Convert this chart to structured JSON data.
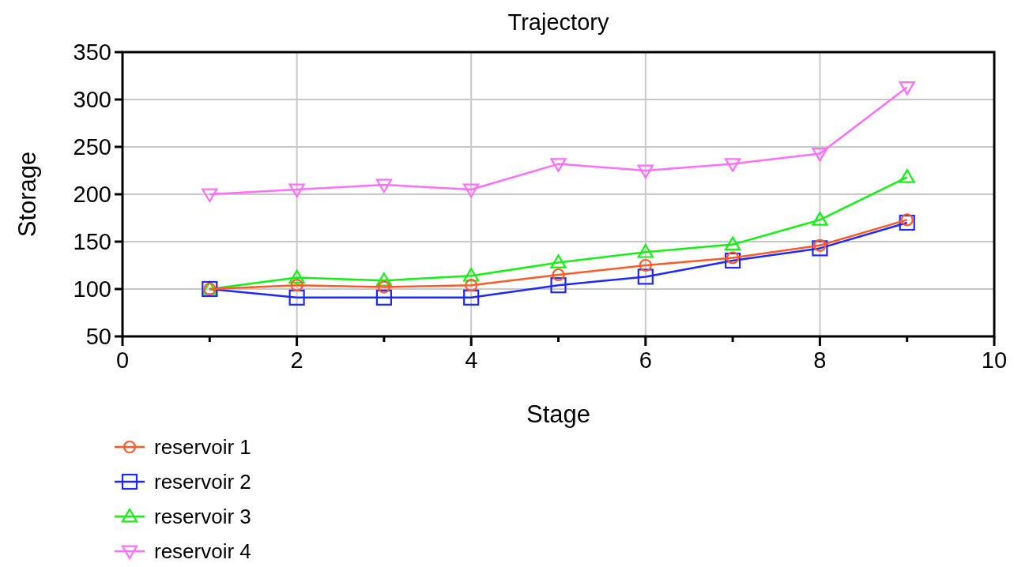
{
  "chart_data": {
    "type": "line",
    "title": "Trajectory",
    "xlabel": "Stage",
    "ylabel": "Storage",
    "x": [
      1,
      2,
      3,
      4,
      5,
      6,
      7,
      8,
      9
    ],
    "series": [
      {
        "name": "reservoir  1",
        "color": "#ff5a28",
        "marker": "circle",
        "values": [
          100,
          104,
          102,
          104,
          115,
          125,
          133,
          146,
          173
        ]
      },
      {
        "name": "reservoir  2",
        "color": "#1e28ff",
        "marker": "square",
        "values": [
          100,
          91,
          91,
          91,
          104,
          113,
          130,
          143,
          170
        ]
      },
      {
        "name": "reservoir  3",
        "color": "#14f014",
        "marker": "triangle",
        "values": [
          100,
          112,
          109,
          114,
          128,
          139,
          147,
          173,
          218
        ]
      },
      {
        "name": "reservoir  4",
        "color": "#ff6eff",
        "marker": "triangle-down",
        "values": [
          200,
          205,
          210,
          205,
          232,
          225,
          232,
          243,
          313
        ]
      }
    ],
    "xlim": [
      0,
      10
    ],
    "xticks": [
      0,
      {
        "value": 1,
        "label": null
      },
      2,
      {
        "value": 3,
        "label": null
      },
      4,
      {
        "value": 5,
        "label": null
      },
      6,
      {
        "value": 7,
        "label": null
      },
      8,
      {
        "value": 9,
        "label": null
      },
      10
    ],
    "ylim": [
      50,
      350
    ],
    "yticks": [
      50,
      100,
      150,
      200,
      250,
      300,
      350
    ],
    "grid": true,
    "legend": "bottom left",
    "line_style": "solid"
  }
}
